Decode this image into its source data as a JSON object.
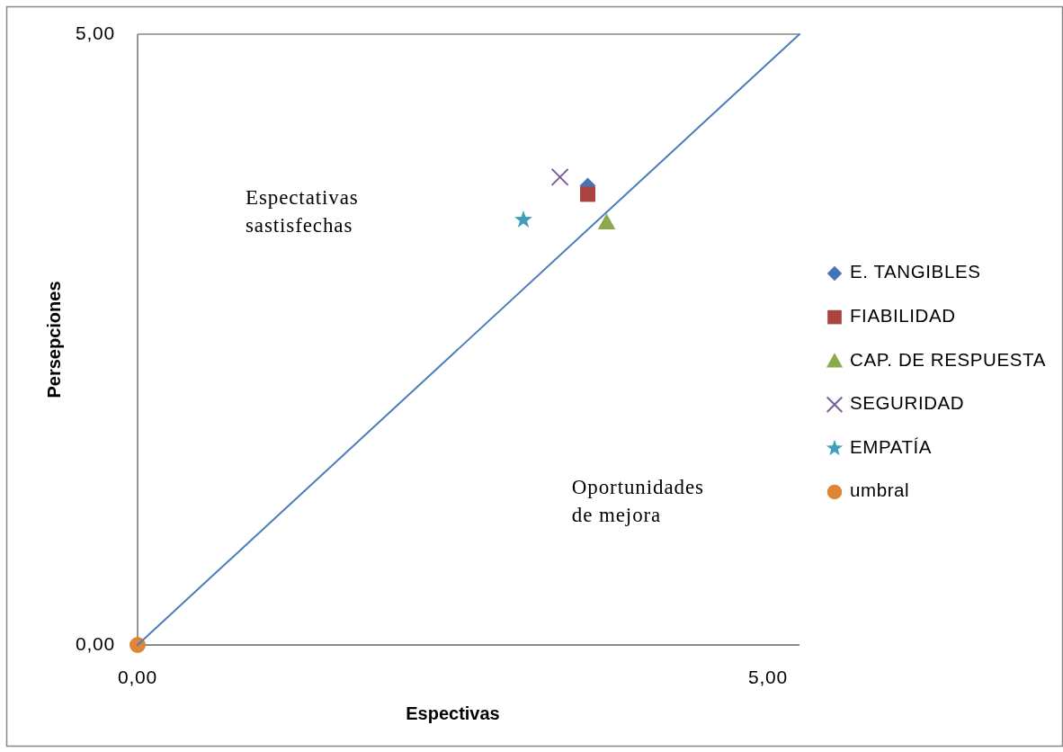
{
  "chart_data": {
    "type": "scatter",
    "xlabel": "Espectivas",
    "ylabel": "Persepciones",
    "xlim": [
      0,
      5.25
    ],
    "xticks": [
      {
        "value": 0,
        "label": "0,00"
      },
      {
        "value": 5,
        "label": "5,00"
      }
    ],
    "ylim": [
      0,
      5
    ],
    "yticks": [
      {
        "value": 0,
        "label": "0,00"
      },
      {
        "value": 5,
        "label": "5,00"
      }
    ],
    "grid": "y",
    "legend": "right",
    "annotations": [
      "Espectativas sastisfechas",
      "Oportunidades de mejora"
    ],
    "series": [
      {
        "name": "E. TANGIBLES",
        "color": "#4674b4",
        "marker": "diamond",
        "x": [
          3.57
        ],
        "values": [
          3.76
        ]
      },
      {
        "name": "FIABILIDAD",
        "color": "#ab4340",
        "marker": "square",
        "x": [
          3.57
        ],
        "values": [
          3.69
        ]
      },
      {
        "name": "CAP. DE RESPUESTA",
        "color": "#8baa4e",
        "marker": "triangle",
        "x": [
          3.72
        ],
        "values": [
          3.46
        ]
      },
      {
        "name": "SEGURIDAD",
        "color": "#7a5c99",
        "marker": "cross",
        "x": [
          3.35
        ],
        "values": [
          3.83
        ]
      },
      {
        "name": "EMPATÍA",
        "color": "#3f9fb8",
        "marker": "star",
        "x": [
          3.06
        ],
        "values": [
          3.48
        ]
      },
      {
        "name": "umbral",
        "color": "#e08538",
        "marker": "circle",
        "x": [
          0
        ],
        "values": [
          0
        ]
      },
      {
        "type": "line",
        "color": "#4a7ebb",
        "x": [
          0,
          5.25
        ],
        "values": [
          0,
          5
        ]
      }
    ]
  }
}
